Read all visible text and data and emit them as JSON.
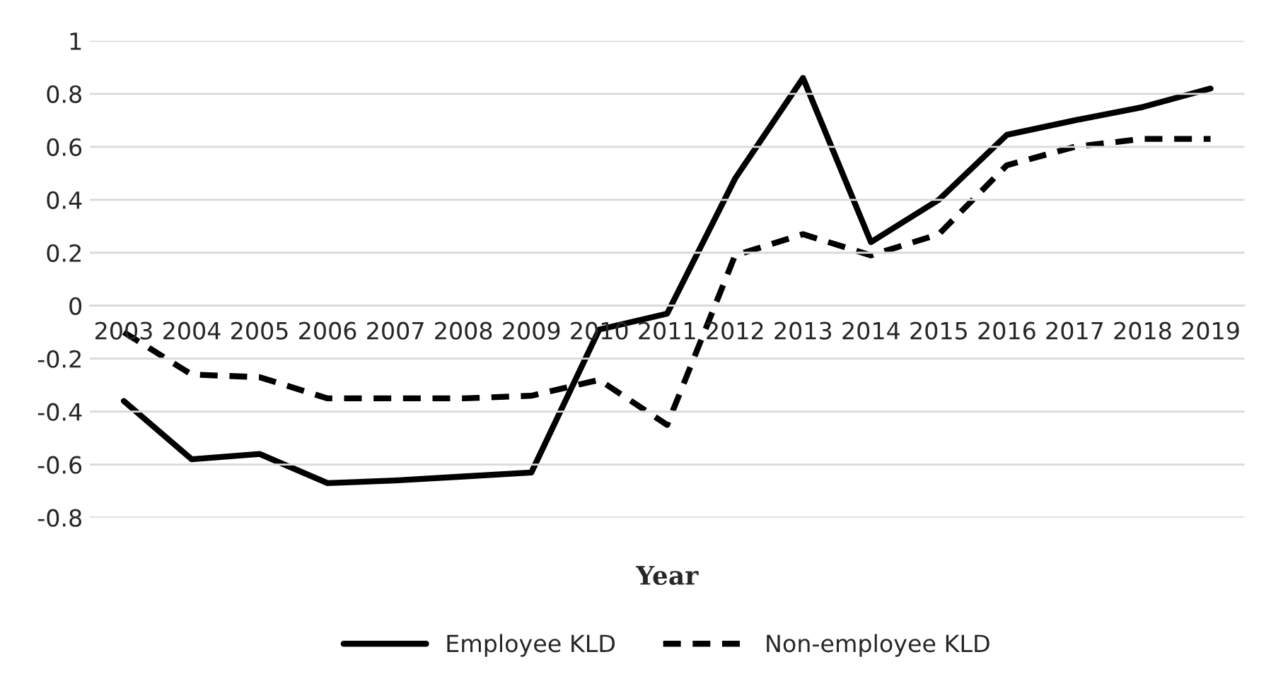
{
  "chart_data": {
    "type": "line",
    "xlabel": "Year",
    "categories": [
      "2003",
      "2004",
      "2005",
      "2006",
      "2007",
      "2008",
      "2009",
      "2010",
      "2011",
      "2012",
      "2013",
      "2014",
      "2015",
      "2016",
      "2017",
      "2018",
      "2019"
    ],
    "series": [
      {
        "name": "Employee KLD",
        "color": "#000000",
        "line_style": "solid",
        "values": [
          -0.36,
          -0.58,
          -0.56,
          -0.67,
          -0.66,
          -0.645,
          -0.63,
          -0.09,
          -0.03,
          0.48,
          0.86,
          0.24,
          0.4,
          0.645,
          0.7,
          0.75,
          0.82
        ]
      },
      {
        "name": "Non-employee KLD",
        "color": "#000000",
        "line_style": "dashed",
        "values": [
          -0.1,
          -0.26,
          -0.27,
          -0.35,
          -0.35,
          -0.35,
          -0.34,
          -0.28,
          -0.45,
          0.19,
          0.27,
          0.19,
          0.27,
          0.53,
          0.6,
          0.63,
          0.63
        ]
      }
    ],
    "ylim": [
      -0.8,
      1
    ],
    "yticks": [
      -0.8,
      -0.6,
      -0.4,
      -0.2,
      0,
      0.2,
      0.4,
      0.6,
      0.8,
      1
    ],
    "grid": "y",
    "legend": "bottom",
    "marker": "none"
  }
}
